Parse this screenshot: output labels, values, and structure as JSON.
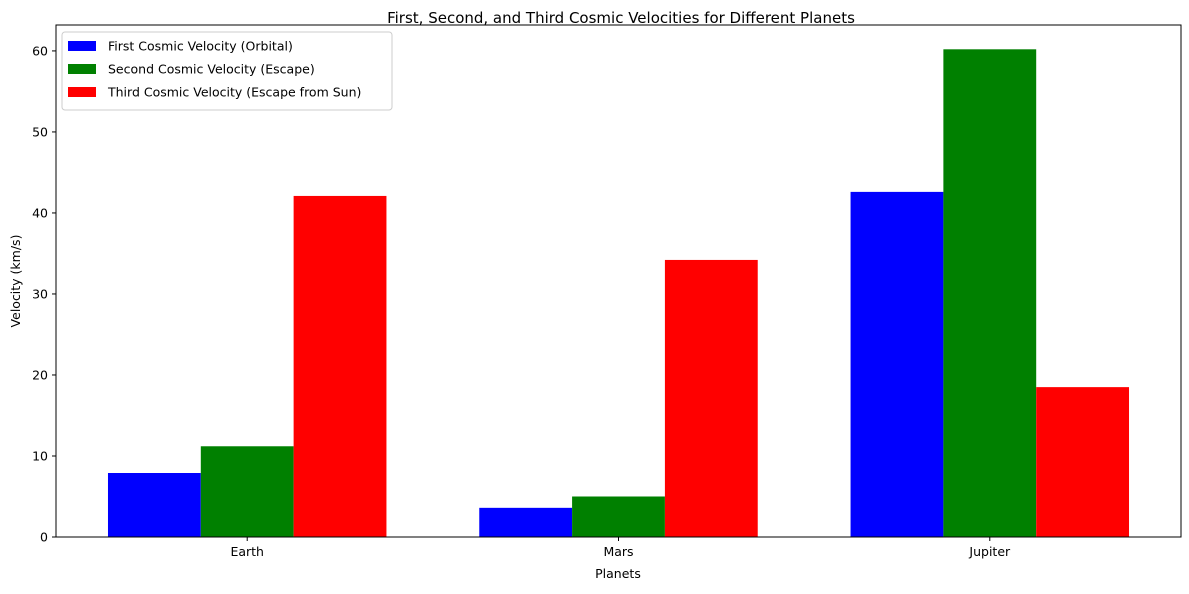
{
  "chart_data": {
    "type": "bar",
    "title": "First, Second, and Third Cosmic Velocities for Different Planets",
    "xlabel": "Planets",
    "ylabel": "Velocity (km/s)",
    "categories": [
      "Earth",
      "Mars",
      "Jupiter"
    ],
    "series": [
      {
        "name": "First Cosmic Velocity (Orbital)",
        "color": "#0000ff",
        "values": [
          7.9,
          3.6,
          42.6
        ]
      },
      {
        "name": "Second Cosmic Velocity (Escape)",
        "color": "#008000",
        "values": [
          11.2,
          5.0,
          60.2
        ]
      },
      {
        "name": "Third Cosmic Velocity (Escape from Sun)",
        "color": "#ff0000",
        "values": [
          42.1,
          34.2,
          18.5
        ]
      }
    ],
    "ylim": [
      0,
      63.2
    ],
    "yticks": [
      0,
      10,
      20,
      30,
      40,
      50,
      60
    ],
    "grid": false,
    "legend_position": "top-left"
  }
}
